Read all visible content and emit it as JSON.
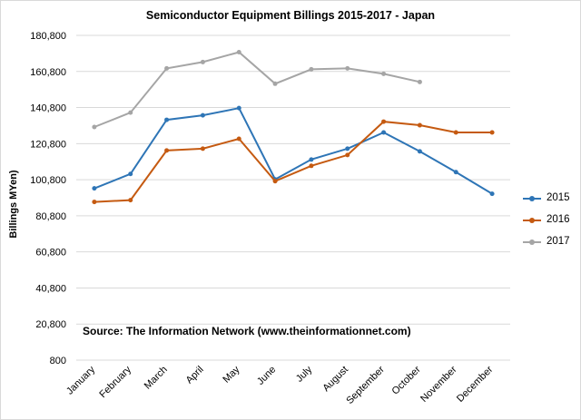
{
  "chart_data": {
    "type": "line",
    "title": "Semiconductor Equipment Billings 2015-2017 - Japan",
    "xlabel": "",
    "ylabel": "Billings MYen)",
    "source_note": "Source: The Information Network (www.theinformationnet.com)",
    "categories": [
      "January",
      "February",
      "March",
      "April",
      "May",
      "June",
      "July",
      "August",
      "September",
      "October",
      "November",
      "December"
    ],
    "y_ticks": [
      "800",
      "20,800",
      "40,800",
      "60,800",
      "80,800",
      "100,800",
      "120,800",
      "140,800",
      "160,800",
      "180,800"
    ],
    "ylim": [
      800,
      180800
    ],
    "grid": true,
    "legend_position": "right",
    "series": [
      {
        "name": "2015",
        "color": "#2e75b6",
        "values": [
          96000,
          104000,
          134000,
          136500,
          140500,
          101000,
          112000,
          118000,
          127000,
          116500,
          105000,
          93000
        ]
      },
      {
        "name": "2016",
        "color": "#c55a11",
        "values": [
          88500,
          89500,
          117000,
          118000,
          123500,
          100000,
          108500,
          114500,
          133000,
          131000,
          127000,
          127000
        ]
      },
      {
        "name": "2017",
        "color": "#a5a5a5",
        "values": [
          130000,
          138000,
          162500,
          166000,
          171500,
          154000,
          162000,
          162500,
          159500,
          155000,
          null,
          null
        ]
      }
    ]
  }
}
